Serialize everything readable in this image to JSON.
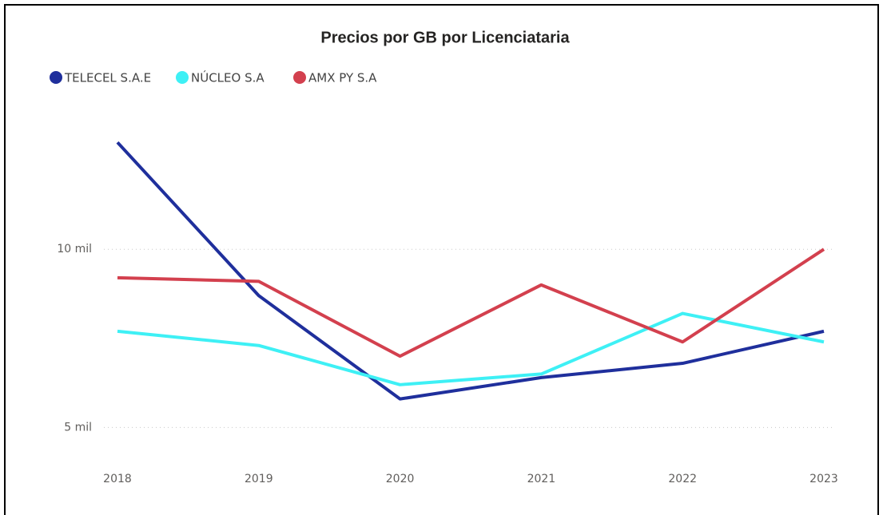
{
  "chart_data": {
    "type": "line",
    "title": "Precios por GB por Licenciataria",
    "categories": [
      "2018",
      "2019",
      "2020",
      "2021",
      "2022",
      "2023"
    ],
    "series": [
      {
        "name": "TELECEL S.A.E",
        "color": "#1f2f9c",
        "values": [
          13000,
          8700,
          5800,
          6400,
          6800,
          7700
        ]
      },
      {
        "name": "NÚCLEO S.A",
        "color": "#3ef0f5",
        "values": [
          7700,
          7300,
          6200,
          6500,
          8200,
          7400
        ]
      },
      {
        "name": "AMX PY S.A",
        "color": "#d3404e",
        "values": [
          9200,
          9100,
          7000,
          9000,
          7400,
          10000
        ]
      }
    ],
    "ylim": [
      4000,
      13500
    ],
    "yticks": [
      {
        "value": 5000,
        "label": "5 mil"
      },
      {
        "value": 10000,
        "label": "10 mil"
      }
    ],
    "grid": true
  }
}
